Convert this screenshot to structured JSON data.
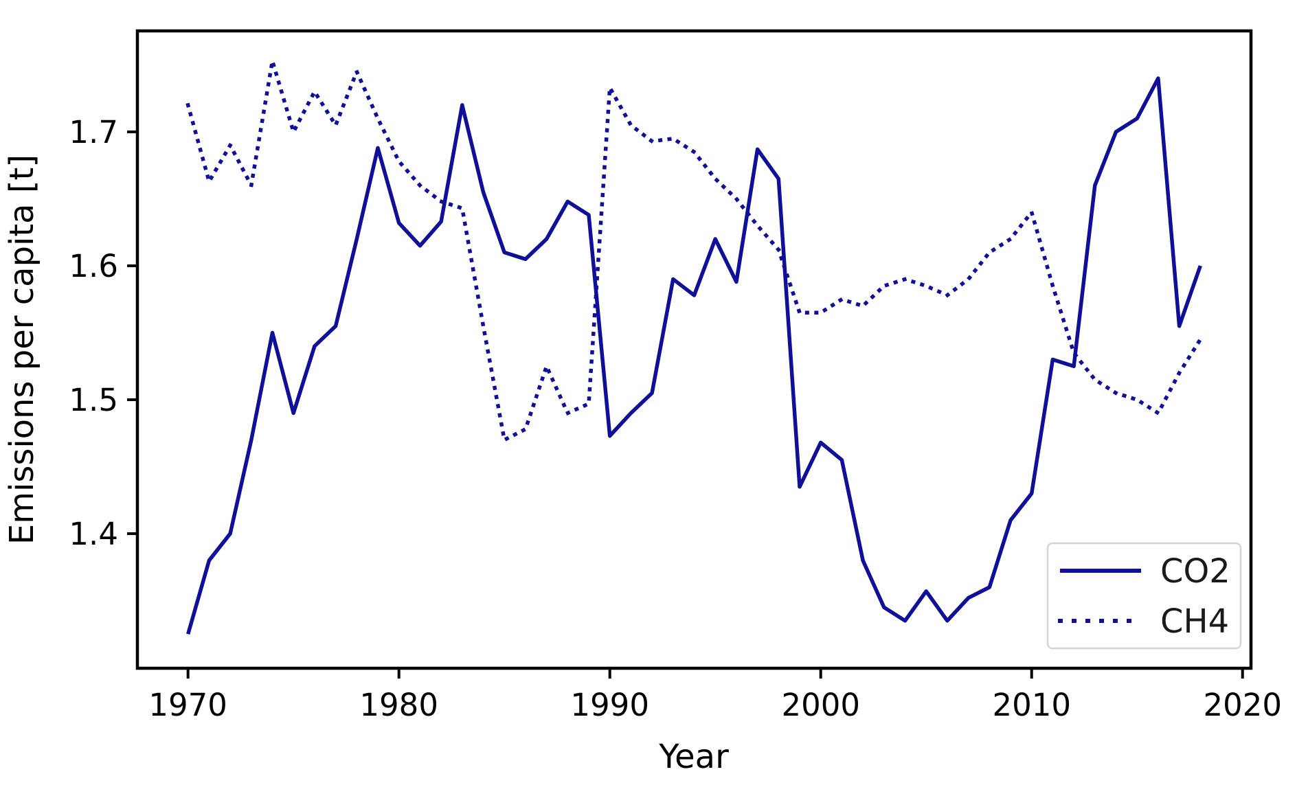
{
  "chart_data": {
    "type": "line",
    "title": "",
    "xlabel": "Year",
    "ylabel": "Emissions per capita [t]",
    "x": [
      1970,
      1971,
      1972,
      1973,
      1974,
      1975,
      1976,
      1977,
      1978,
      1979,
      1980,
      1981,
      1982,
      1983,
      1984,
      1985,
      1986,
      1987,
      1988,
      1989,
      1990,
      1991,
      1992,
      1993,
      1994,
      1995,
      1996,
      1997,
      1998,
      1999,
      2000,
      2001,
      2002,
      2003,
      2004,
      2005,
      2006,
      2007,
      2008,
      2009,
      2010,
      2011,
      2012,
      2013,
      2014,
      2015,
      2016,
      2017,
      2018
    ],
    "series": [
      {
        "name": "CO2",
        "style": "solid",
        "color": "#0f0f99",
        "values": [
          1.325,
          1.38,
          1.4,
          1.47,
          1.55,
          1.49,
          1.54,
          1.555,
          1.62,
          1.688,
          1.632,
          1.615,
          1.633,
          1.72,
          1.655,
          1.61,
          1.605,
          1.62,
          1.648,
          1.638,
          1.473,
          1.49,
          1.505,
          1.59,
          1.578,
          1.62,
          1.588,
          1.687,
          1.665,
          1.435,
          1.468,
          1.455,
          1.38,
          1.345,
          1.335,
          1.357,
          1.335,
          1.352,
          1.36,
          1.41,
          1.43,
          1.53,
          1.525,
          1.66,
          1.7,
          1.71,
          1.74,
          1.555,
          1.6
        ]
      },
      {
        "name": "CH4",
        "style": "dotted",
        "color": "#0f0f99",
        "values": [
          1.72,
          1.663,
          1.69,
          1.66,
          1.753,
          1.7,
          1.73,
          1.705,
          1.745,
          1.71,
          1.678,
          1.66,
          1.648,
          1.643,
          1.555,
          1.47,
          1.478,
          1.525,
          1.49,
          1.497,
          1.733,
          1.705,
          1.693,
          1.695,
          1.685,
          1.665,
          1.65,
          1.63,
          1.612,
          1.565,
          1.565,
          1.575,
          1.57,
          1.585,
          1.59,
          1.585,
          1.578,
          1.59,
          1.61,
          1.62,
          1.64,
          1.585,
          1.535,
          1.515,
          1.505,
          1.5,
          1.49,
          1.52,
          1.545
        ]
      }
    ],
    "xlim": [
      1967.6,
      2020.4
    ],
    "ylim": [
      1.2995,
      1.7754
    ],
    "x_ticks": [
      1970,
      1980,
      1990,
      2000,
      2010,
      2020
    ],
    "x_tick_labels": [
      "1970",
      "1980",
      "1990",
      "2000",
      "2010",
      "2020"
    ],
    "y_ticks": [
      1.4,
      1.5,
      1.6,
      1.7
    ],
    "y_tick_labels": [
      "1.4",
      "1.5",
      "1.6",
      "1.7"
    ],
    "grid": false,
    "legend_position": "lower right",
    "legend_entries": [
      "CO2",
      "CH4"
    ],
    "axis_color": "#000000",
    "background_color": "#ffffff"
  }
}
